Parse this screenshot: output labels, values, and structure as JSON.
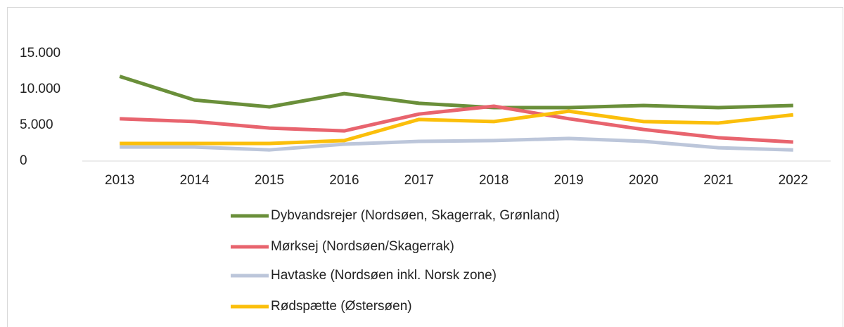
{
  "chart_data": {
    "type": "line",
    "categories": [
      "2013",
      "2014",
      "2015",
      "2016",
      "2017",
      "2018",
      "2019",
      "2020",
      "2021",
      "2022"
    ],
    "series": [
      {
        "name": "Dybvandsrejer (Nordsøen, Skagerrak, Grønland)",
        "color": "#6a8f3a",
        "values": [
          11800,
          8500,
          7550,
          9400,
          8050,
          7450,
          7450,
          7750,
          7450,
          7750
        ]
      },
      {
        "name": "Mørksej (Nordsøen/Skagerrak)",
        "color": "#e8646e",
        "values": [
          5900,
          5500,
          4600,
          4200,
          6550,
          7650,
          5900,
          4400,
          3250,
          2650
        ]
      },
      {
        "name": "Havtaske (Nordsøen inkl. Norsk zone)",
        "color": "#bcc6da",
        "values": [
          1950,
          1950,
          1550,
          2350,
          2750,
          2850,
          3150,
          2750,
          1850,
          1550
        ]
      },
      {
        "name": "Rødspætte (Østersøen)",
        "color": "#fbbf0b",
        "values": [
          2450,
          2450,
          2450,
          2850,
          5800,
          5500,
          6950,
          5500,
          5300,
          6450
        ]
      }
    ],
    "ylim": [
      0,
      15000
    ],
    "yticks": [
      0,
      {
        "value": 5000,
        "label": "5.000"
      },
      {
        "value": 10000,
        "label": "10.000"
      },
      {
        "value": 15000,
        "label": "15.000"
      }
    ],
    "legend": "bottom"
  }
}
